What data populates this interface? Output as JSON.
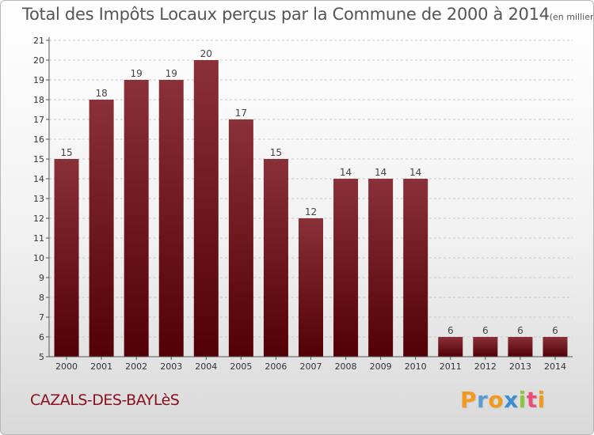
{
  "title": {
    "main": "Total des Impôts Locaux perçus par la Commune de 2000 à 2014",
    "unit": "(en milliers d'€)"
  },
  "commune": "CAZALS-DES-BAYLèS",
  "logo": {
    "letters": [
      "P",
      "r",
      "o",
      "x",
      "i",
      "t",
      "i"
    ],
    "colors": [
      "#f29a1d",
      "#5b9bd5",
      "#f29a1d",
      "#3b8fd0",
      "#8cc63f",
      "#e94e77",
      "#f29a1d"
    ]
  },
  "colors": {
    "bar_top": "#8a3038",
    "bar_bottom": "#520006",
    "axis": "#555555",
    "grid": "#c8c8c8"
  },
  "chart_data": {
    "type": "bar",
    "categories": [
      "2000",
      "2001",
      "2002",
      "2003",
      "2004",
      "2005",
      "2006",
      "2007",
      "2008",
      "2009",
      "2010",
      "2011",
      "2012",
      "2013",
      "2014"
    ],
    "values": [
      15,
      18,
      19,
      19,
      20,
      17,
      15,
      12,
      14,
      14,
      14,
      6,
      6,
      6,
      6
    ],
    "value_labels": [
      "15",
      "18",
      "19",
      "19",
      "20",
      "17",
      "15",
      "12",
      "14",
      "14",
      "14",
      "6",
      "6",
      "6",
      "6"
    ],
    "y_ticks": [
      "5",
      "6",
      "7",
      "8",
      "9",
      "10",
      "11",
      "12",
      "13",
      "14",
      "15",
      "16",
      "17",
      "18",
      "19",
      "20",
      "21"
    ],
    "ylim": [
      5,
      21
    ],
    "grid": true
  }
}
